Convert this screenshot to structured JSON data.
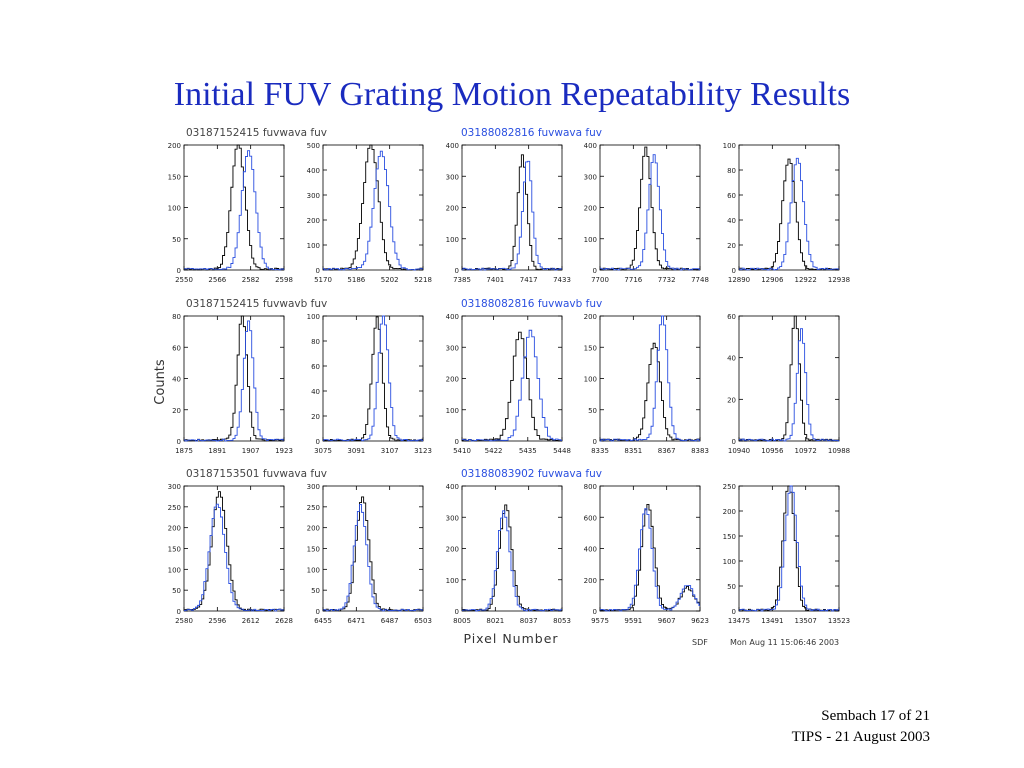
{
  "slide": {
    "title": "Initial FUV Grating Motion Repeatability Results",
    "footer_line1": "Sembach 17 of 21",
    "footer_line2": "TIPS - 21 August 2003"
  },
  "figure": {
    "ylabel": "Counts",
    "xlabel": "Pixel Number",
    "credit": "SDF",
    "timestamp": "Mon Aug 11 15:06:46 2003",
    "colors": {
      "black_series": "#000000",
      "blue_series": "#2a4fe0",
      "title_blue": "#1a2bbf"
    },
    "row_labels": [
      {
        "left": {
          "id": "03187152415",
          "text": "03187152415   fuvwava   fuv",
          "color": "#444444"
        },
        "right": {
          "id": "03188082816",
          "text": "03188082816   fuvwava   fuv",
          "color": "#2a4fe0"
        }
      },
      {
        "left": {
          "id": "03187152415",
          "text": "03187152415   fuvwavb   fuv",
          "color": "#444444"
        },
        "right": {
          "id": "03188082816",
          "text": "03188082816   fuvwavb   fuv",
          "color": "#2a4fe0"
        }
      },
      {
        "left": {
          "id": "03187153501",
          "text": "03187153501   fuvwava   fuv",
          "color": "#444444"
        },
        "right": {
          "id": "03188083902",
          "text": "03188083902   fuvwava   fuv",
          "color": "#2a4fe0"
        }
      }
    ]
  },
  "chart_data": [
    {
      "type": "line",
      "row": 0,
      "col": 0,
      "xlim": [
        2550,
        2598
      ],
      "xticks": [
        2550,
        2566,
        2582,
        2598
      ],
      "ylim": [
        0,
        200
      ],
      "yticks": [
        0,
        50,
        100,
        150,
        200
      ],
      "series": [
        {
          "color": "#000000",
          "center": 2576,
          "sigma": 3.2,
          "peak": 200
        },
        {
          "color": "#2a4fe0",
          "center": 2581,
          "sigma": 3.2,
          "peak": 190
        }
      ]
    },
    {
      "type": "line",
      "row": 0,
      "col": 1,
      "xlim": [
        5170,
        5218
      ],
      "xticks": [
        5170,
        5186,
        5202,
        5218
      ],
      "ylim": [
        0,
        500
      ],
      "yticks": [
        0,
        100,
        200,
        300,
        400,
        500
      ],
      "series": [
        {
          "color": "#000000",
          "center": 5193,
          "sigma": 3.5,
          "peak": 500
        },
        {
          "color": "#2a4fe0",
          "center": 5198,
          "sigma": 3.5,
          "peak": 470
        }
      ]
    },
    {
      "type": "line",
      "row": 0,
      "col": 2,
      "xlim": [
        7385,
        7433
      ],
      "xticks": [
        7385,
        7401,
        7417,
        7433
      ],
      "ylim": [
        0,
        400
      ],
      "yticks": [
        0,
        100,
        200,
        300,
        400
      ],
      "series": [
        {
          "color": "#000000",
          "center": 7414,
          "sigma": 2.2,
          "peak": 360
        },
        {
          "color": "#2a4fe0",
          "center": 7416.5,
          "sigma": 2.2,
          "peak": 350
        }
      ]
    },
    {
      "type": "line",
      "row": 0,
      "col": 3,
      "xlim": [
        7700,
        7748
      ],
      "xticks": [
        7700,
        7716,
        7732,
        7748
      ],
      "ylim": [
        0,
        400
      ],
      "yticks": [
        0,
        100,
        200,
        300,
        400
      ],
      "series": [
        {
          "color": "#000000",
          "center": 7722,
          "sigma": 2.6,
          "peak": 385
        },
        {
          "color": "#2a4fe0",
          "center": 7726,
          "sigma": 2.6,
          "peak": 360
        }
      ]
    },
    {
      "type": "line",
      "row": 0,
      "col": 4,
      "xlim": [
        12890,
        12938
      ],
      "xticks": [
        12890,
        12906,
        12922,
        12938
      ],
      "ylim": [
        0,
        100
      ],
      "yticks": [
        0,
        20,
        40,
        60,
        80,
        100
      ],
      "series": [
        {
          "color": "#000000",
          "center": 12914,
          "sigma": 3.0,
          "peak": 88
        },
        {
          "color": "#2a4fe0",
          "center": 12918,
          "sigma": 3.0,
          "peak": 88
        }
      ]
    },
    {
      "type": "line",
      "row": 1,
      "col": 0,
      "xlim": [
        1875,
        1923
      ],
      "xticks": [
        1875,
        1891,
        1907,
        1923
      ],
      "ylim": [
        0,
        80
      ],
      "yticks": [
        0,
        20,
        40,
        60,
        80
      ],
      "series": [
        {
          "color": "#000000",
          "center": 1903,
          "sigma": 2.3,
          "peak": 80
        },
        {
          "color": "#2a4fe0",
          "center": 1906,
          "sigma": 2.3,
          "peak": 76
        }
      ]
    },
    {
      "type": "line",
      "row": 1,
      "col": 1,
      "xlim": [
        3075,
        3123
      ],
      "xticks": [
        3075,
        3091,
        3107,
        3123
      ],
      "ylim": [
        0,
        100
      ],
      "yticks": [
        0,
        20,
        40,
        60,
        80,
        100
      ],
      "series": [
        {
          "color": "#000000",
          "center": 3101,
          "sigma": 2.4,
          "peak": 97
        },
        {
          "color": "#2a4fe0",
          "center": 3104,
          "sigma": 2.4,
          "peak": 100
        }
      ]
    },
    {
      "type": "line",
      "row": 1,
      "col": 2,
      "xlim": [
        5410,
        5448
      ],
      "xticks": [
        5410,
        5422,
        5435,
        5448
      ],
      "ylim": [
        0,
        400
      ],
      "yticks": [
        0,
        100,
        200,
        300,
        400
      ],
      "series": [
        {
          "color": "#000000",
          "center": 5432,
          "sigma": 2.8,
          "peak": 340
        },
        {
          "color": "#2a4fe0",
          "center": 5436,
          "sigma": 2.8,
          "peak": 345
        }
      ]
    },
    {
      "type": "line",
      "row": 1,
      "col": 3,
      "xlim": [
        8335,
        8383
      ],
      "xticks": [
        8335,
        8351,
        8367,
        8383
      ],
      "ylim": [
        0,
        200
      ],
      "yticks": [
        0,
        50,
        100,
        150,
        200
      ],
      "series": [
        {
          "color": "#000000",
          "center": 8361,
          "sigma": 2.9,
          "peak": 155
        },
        {
          "color": "#2a4fe0",
          "center": 8365,
          "sigma": 2.4,
          "peak": 200
        }
      ]
    },
    {
      "type": "line",
      "row": 1,
      "col": 4,
      "xlim": [
        10940,
        10988
      ],
      "xticks": [
        10940,
        10956,
        10972,
        10988
      ],
      "ylim": [
        0,
        60
      ],
      "yticks": [
        0,
        20,
        40,
        60
      ],
      "series": [
        {
          "color": "#000000",
          "center": 10967,
          "sigma": 2.0,
          "peak": 60
        },
        {
          "color": "#2a4fe0",
          "center": 10970,
          "sigma": 2.0,
          "peak": 53
        }
      ]
    },
    {
      "type": "line",
      "row": 2,
      "col": 0,
      "xlim": [
        2580,
        2628
      ],
      "xticks": [
        2580,
        2596,
        2612,
        2628
      ],
      "ylim": [
        0,
        300
      ],
      "yticks": [
        0,
        50,
        100,
        150,
        200,
        250,
        300
      ],
      "series": [
        {
          "color": "#000000",
          "center": 2597,
          "sigma": 3.6,
          "peak": 280
        },
        {
          "color": "#2a4fe0",
          "center": 2596,
          "sigma": 3.6,
          "peak": 255
        }
      ]
    },
    {
      "type": "line",
      "row": 2,
      "col": 1,
      "xlim": [
        6455,
        6503
      ],
      "xticks": [
        6455,
        6471,
        6487,
        6503
      ],
      "ylim": [
        0,
        300
      ],
      "yticks": [
        0,
        50,
        100,
        150,
        200,
        250,
        300
      ],
      "series": [
        {
          "color": "#000000",
          "center": 6474,
          "sigma": 3.0,
          "peak": 270
        },
        {
          "color": "#2a4fe0",
          "center": 6473,
          "sigma": 3.0,
          "peak": 250
        }
      ]
    },
    {
      "type": "line",
      "row": 2,
      "col": 2,
      "xlim": [
        8005,
        8053
      ],
      "xticks": [
        8005,
        8021,
        8037,
        8053
      ],
      "ylim": [
        0,
        400
      ],
      "yticks": [
        0,
        100,
        200,
        300,
        400
      ],
      "series": [
        {
          "color": "#000000",
          "center": 8026,
          "sigma": 2.9,
          "peak": 330
        },
        {
          "color": "#2a4fe0",
          "center": 8025,
          "sigma": 2.9,
          "peak": 315
        }
      ]
    },
    {
      "type": "line",
      "row": 2,
      "col": 3,
      "xlim": [
        9575,
        9623
      ],
      "xticks": [
        9575,
        9591,
        9607,
        9623
      ],
      "ylim": [
        0,
        800
      ],
      "yticks": [
        0,
        200,
        400,
        600,
        800
      ],
      "series": [
        {
          "color": "#000000",
          "center": 9598,
          "sigma": 2.9,
          "peak": 670,
          "center2": 9617,
          "sigma2": 3.2,
          "peak2": 140
        },
        {
          "color": "#2a4fe0",
          "center": 9597,
          "sigma": 2.9,
          "peak": 650,
          "center2": 9617,
          "sigma2": 3.2,
          "peak2": 150
        }
      ]
    },
    {
      "type": "line",
      "row": 2,
      "col": 4,
      "xlim": [
        13475,
        13523
      ],
      "xticks": [
        13475,
        13491,
        13507,
        13523
      ],
      "ylim": [
        0,
        250
      ],
      "yticks": [
        0,
        50,
        100,
        150,
        200,
        250
      ],
      "series": [
        {
          "color": "#000000",
          "center": 13499,
          "sigma": 2.7,
          "peak": 250
        },
        {
          "color": "#2a4fe0",
          "center": 13500,
          "sigma": 2.7,
          "peak": 250
        }
      ]
    }
  ]
}
